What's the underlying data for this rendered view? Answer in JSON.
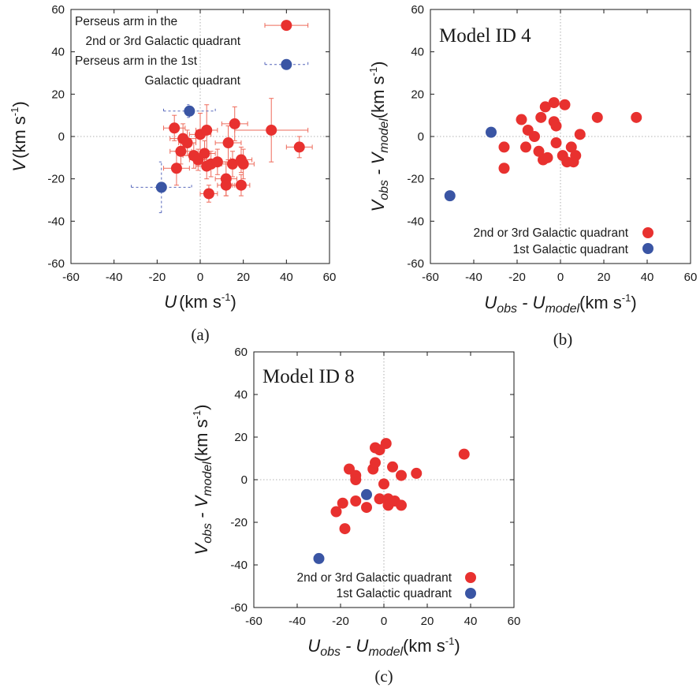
{
  "chart_data": [
    {
      "id": "a",
      "type": "scatter",
      "caption": "(a)",
      "xlabel_main": "U",
      "xlabel_unit": "(km s",
      "ylabel_main": "V",
      "ylabel_unit": "(km s",
      "unit_exp": "-1",
      "unit_close": ")",
      "xlim": [
        -60,
        60
      ],
      "ylim": [
        -60,
        60
      ],
      "xticks": [
        "-60",
        "-40",
        "-20",
        "0",
        "20",
        "40",
        "60"
      ],
      "yticks": [
        "-60",
        "-40",
        "-20",
        "0",
        "20",
        "40",
        "60"
      ],
      "colors": {
        "red": "#e8312f",
        "blue": "#3a55a4",
        "red_err": "#ee6a5a",
        "blue_err": "#5566bb"
      },
      "legend": {
        "red_line1": "Perseus arm in the",
        "red_line2": "2nd or 3rd Galactic quadrant",
        "blue_line1": "Perseus arm in the 1st",
        "blue_line2": "Galactic quadrant"
      },
      "series": [
        {
          "name": "Perseus arm in the 2nd or 3rd Galactic quadrant",
          "color": "red",
          "points": [
            {
              "x": -12,
              "y": 4,
              "ex": 5,
              "ey": 6
            },
            {
              "x": -8,
              "y": -1,
              "ex": 6,
              "ey": 7
            },
            {
              "x": -9,
              "y": -7,
              "ex": 5,
              "ey": 6
            },
            {
              "x": -11,
              "y": -15,
              "ex": 6,
              "ey": 8
            },
            {
              "x": -6,
              "y": -3,
              "ex": 4,
              "ey": 6
            },
            {
              "x": -3,
              "y": -9,
              "ex": 5,
              "ey": 6
            },
            {
              "x": -1,
              "y": -11,
              "ex": 4,
              "ey": 5
            },
            {
              "x": 0,
              "y": 1,
              "ex": 5,
              "ey": 10
            },
            {
              "x": 3,
              "y": 3,
              "ex": 5,
              "ey": 12
            },
            {
              "x": 2,
              "y": -8,
              "ex": 5,
              "ey": 6
            },
            {
              "x": 3,
              "y": -14,
              "ex": 5,
              "ey": 6
            },
            {
              "x": 5,
              "y": -13,
              "ex": 4,
              "ey": 6
            },
            {
              "x": 8,
              "y": -12,
              "ex": 5,
              "ey": 6
            },
            {
              "x": 4,
              "y": -27,
              "ex": 4,
              "ey": 4
            },
            {
              "x": 12,
              "y": -20,
              "ex": 5,
              "ey": 8
            },
            {
              "x": 12,
              "y": -23,
              "ex": 4,
              "ey": 5
            },
            {
              "x": 13,
              "y": -3,
              "ex": 6,
              "ey": 8
            },
            {
              "x": 15,
              "y": -13,
              "ex": 5,
              "ey": 6
            },
            {
              "x": 16,
              "y": 6,
              "ex": 6,
              "ey": 8
            },
            {
              "x": 19,
              "y": -11,
              "ex": 5,
              "ey": 6
            },
            {
              "x": 20,
              "y": -13,
              "ex": 5,
              "ey": 7
            },
            {
              "x": 19,
              "y": -23,
              "ex": 4,
              "ey": 5
            },
            {
              "x": 33,
              "y": 3,
              "ex": 17,
              "ey": 15
            },
            {
              "x": 46,
              "y": -5,
              "ex": 6,
              "ey": 5
            }
          ]
        },
        {
          "name": "Perseus arm in the 1st Galactic quadrant",
          "color": "blue",
          "points": [
            {
              "x": -5,
              "y": 12,
              "ex": 12,
              "ey": 3
            },
            {
              "x": -18,
              "y": -24,
              "ex": 14,
              "ey": 12
            }
          ]
        }
      ],
      "legend_markers": [
        {
          "series": "red",
          "x": 40,
          "y": 52.5,
          "ex": 10,
          "ey": 0
        },
        {
          "series": "blue",
          "x": 40,
          "y": 34,
          "ex": 10,
          "ey": 0
        }
      ]
    },
    {
      "id": "b",
      "type": "scatter",
      "caption": "(b)",
      "annotation": "Model ID 4",
      "xlabel_main": "U",
      "xlabel_sub1": "obs",
      "xlabel_mid": " - U",
      "xlabel_sub2": "model",
      "xlabel_unit": "(km s",
      "ylabel_main": "V",
      "ylabel_sub1": "obs",
      "ylabel_mid": " - V",
      "ylabel_sub2": "model",
      "ylabel_unit": "(km s",
      "unit_exp": "-1",
      "unit_close": ")",
      "xlim": [
        -60,
        60
      ],
      "ylim": [
        -60,
        60
      ],
      "xticks": [
        "-60",
        "-40",
        "-20",
        "0",
        "20",
        "40",
        "60"
      ],
      "yticks": [
        "-60",
        "-40",
        "-20",
        "0",
        "20",
        "40",
        "60"
      ],
      "colors": {
        "red": "#e8312f",
        "blue": "#3a55a4"
      },
      "legend": {
        "red": "2nd or 3rd Galactic quadrant",
        "blue": "1st Galactic quadrant"
      },
      "series": [
        {
          "name": "2nd or 3rd Galactic quadrant",
          "color": "red",
          "points": [
            {
              "x": -26,
              "y": -5
            },
            {
              "x": -26,
              "y": -15
            },
            {
              "x": -18,
              "y": 8
            },
            {
              "x": -15,
              "y": 3
            },
            {
              "x": -16,
              "y": -5
            },
            {
              "x": -12,
              "y": 0
            },
            {
              "x": -10,
              "y": -7
            },
            {
              "x": -9,
              "y": 9
            },
            {
              "x": -7,
              "y": 14
            },
            {
              "x": -8,
              "y": -11
            },
            {
              "x": -6,
              "y": -10
            },
            {
              "x": -3,
              "y": 16
            },
            {
              "x": -3,
              "y": 7
            },
            {
              "x": -2,
              "y": 5
            },
            {
              "x": -2,
              "y": -3
            },
            {
              "x": 1,
              "y": -9
            },
            {
              "x": 2,
              "y": 15
            },
            {
              "x": 3,
              "y": -12
            },
            {
              "x": 5,
              "y": -5
            },
            {
              "x": 6,
              "y": -12
            },
            {
              "x": 7,
              "y": -9
            },
            {
              "x": 9,
              "y": 1
            },
            {
              "x": 17,
              "y": 9
            },
            {
              "x": 35,
              "y": 9
            }
          ]
        },
        {
          "name": "1st Galactic quadrant",
          "color": "blue",
          "points": [
            {
              "x": -32,
              "y": 2
            },
            {
              "x": -51,
              "y": -28
            }
          ]
        }
      ]
    },
    {
      "id": "c",
      "type": "scatter",
      "caption": "(c)",
      "annotation": "Model ID 8",
      "xlabel_main": "U",
      "xlabel_sub1": "obs",
      "xlabel_mid": " - U",
      "xlabel_sub2": "model",
      "xlabel_unit": "(km s",
      "ylabel_main": "V",
      "ylabel_sub1": "obs",
      "ylabel_mid": " - V",
      "ylabel_sub2": "model",
      "ylabel_unit": "(km s",
      "unit_exp": "-1",
      "unit_close": ")",
      "xlim": [
        -60,
        60
      ],
      "ylim": [
        -60,
        60
      ],
      "xticks": [
        "-60",
        "-40",
        "-20",
        "0",
        "20",
        "40",
        "60"
      ],
      "yticks": [
        "-60",
        "-40",
        "-20",
        "0",
        "20",
        "40",
        "60"
      ],
      "colors": {
        "red": "#e8312f",
        "blue": "#3a55a4"
      },
      "legend": {
        "red": "2nd or 3rd Galactic quadrant",
        "blue": "1st Galactic quadrant"
      },
      "series": [
        {
          "name": "2nd or 3rd Galactic quadrant",
          "color": "red",
          "points": [
            {
              "x": -22,
              "y": -15
            },
            {
              "x": -19,
              "y": -11
            },
            {
              "x": -18,
              "y": -23
            },
            {
              "x": -16,
              "y": 5
            },
            {
              "x": -13,
              "y": 2
            },
            {
              "x": -13,
              "y": 0
            },
            {
              "x": -13,
              "y": -10
            },
            {
              "x": -8,
              "y": -13
            },
            {
              "x": -5,
              "y": 5
            },
            {
              "x": -4,
              "y": 8
            },
            {
              "x": -4,
              "y": 15
            },
            {
              "x": -2,
              "y": 14
            },
            {
              "x": -2,
              "y": -9
            },
            {
              "x": 0,
              "y": -2
            },
            {
              "x": 1,
              "y": 17
            },
            {
              "x": 2,
              "y": -9
            },
            {
              "x": 2,
              "y": -12
            },
            {
              "x": 4,
              "y": 6
            },
            {
              "x": 5,
              "y": -10
            },
            {
              "x": 8,
              "y": 2
            },
            {
              "x": 8,
              "y": -12
            },
            {
              "x": 15,
              "y": 3
            },
            {
              "x": 37,
              "y": 12
            }
          ]
        },
        {
          "name": "1st Galactic quadrant",
          "color": "blue",
          "points": [
            {
              "x": -8,
              "y": -7
            },
            {
              "x": -30,
              "y": -37
            }
          ]
        }
      ]
    }
  ]
}
